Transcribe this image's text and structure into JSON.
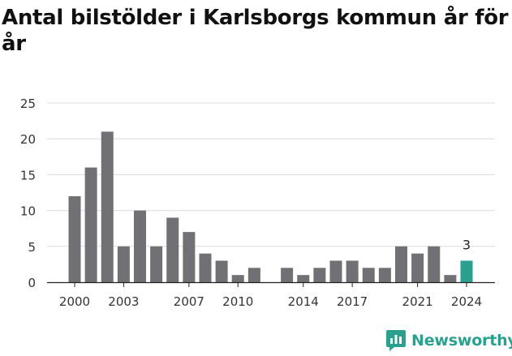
{
  "title": "Antal bilstölder i Karlsborgs kommun år för år",
  "brand": {
    "name": "Newsworthy",
    "icon": "newsworthy-logo-icon",
    "color": "#2ba08f"
  },
  "chart_data": {
    "type": "bar",
    "x": [
      2000,
      2001,
      2002,
      2003,
      2004,
      2005,
      2006,
      2007,
      2008,
      2009,
      2010,
      2011,
      2012,
      2013,
      2014,
      2015,
      2016,
      2017,
      2018,
      2019,
      2020,
      2021,
      2022,
      2023,
      2024
    ],
    "values": [
      12,
      16,
      21,
      5,
      10,
      5,
      9,
      7,
      4,
      3,
      1,
      2,
      null,
      2,
      1,
      2,
      3,
      3,
      2,
      2,
      5,
      4,
      5,
      1,
      3
    ],
    "x_tick_labels": [
      "2000",
      "2003",
      "2007",
      "2010",
      "2014",
      "2017",
      "2021",
      "2024"
    ],
    "y_ticks": [
      0,
      5,
      10,
      15,
      20,
      25
    ],
    "ylim": [
      0,
      25
    ],
    "grid": true,
    "bar_color": "#717074",
    "highlight_color": "#2ba08f",
    "highlight": {
      "x": 2024,
      "label": "3"
    }
  }
}
